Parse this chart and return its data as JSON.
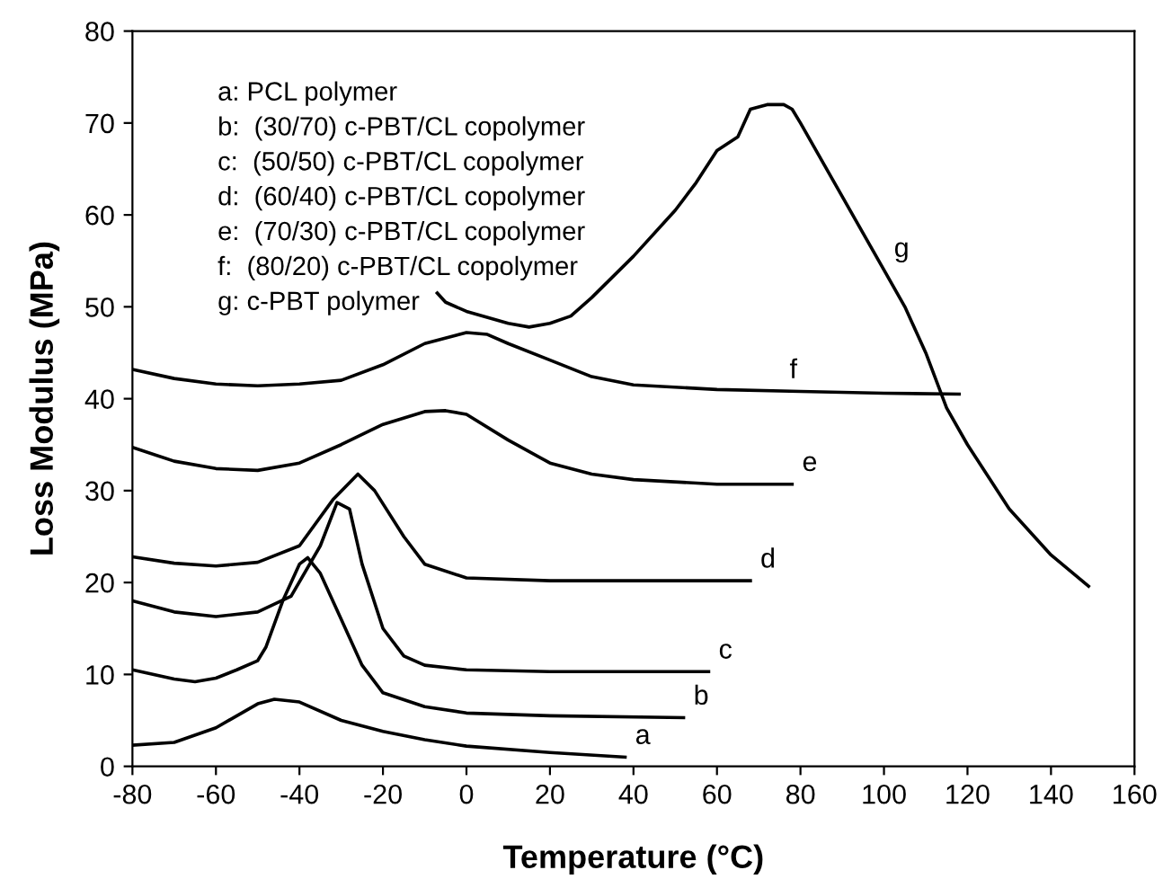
{
  "chart_data": {
    "type": "line",
    "xlabel": "Temperature (°C)",
    "ylabel": "Loss Modulus (MPa)",
    "xlim": [
      -80,
      160
    ],
    "xticks": [
      -80,
      -60,
      -40,
      -20,
      0,
      20,
      40,
      60,
      80,
      100,
      120,
      140,
      160
    ],
    "ylim": [
      0,
      80
    ],
    "yticks": [
      0,
      10,
      20,
      30,
      40,
      50,
      60,
      70,
      80
    ],
    "grid": false,
    "legend": false,
    "marker": "none",
    "line_style": "solid",
    "series": [
      {
        "color": "#000000",
        "x": [
          -80,
          -70,
          -60,
          -50,
          -46,
          -40,
          -30,
          -20,
          -10,
          0,
          20,
          38
        ],
        "values": [
          2.3,
          2.6,
          4.2,
          6.8,
          7.3,
          7.0,
          5.0,
          3.8,
          2.9,
          2.2,
          1.5,
          1.0
        ]
      },
      {
        "color": "#000000",
        "x": [
          -80,
          -70,
          -65,
          -60,
          -55,
          -50,
          -48,
          -44,
          -40,
          -38,
          -35,
          -30,
          -25,
          -20,
          -10,
          0,
          20,
          52
        ],
        "values": [
          10.5,
          9.5,
          9.2,
          9.6,
          10.5,
          11.5,
          13,
          18,
          22,
          22.7,
          21,
          16,
          11,
          8,
          6.5,
          5.8,
          5.5,
          5.3
        ]
      },
      {
        "color": "#000000",
        "x": [
          -80,
          -70,
          -60,
          -50,
          -42,
          -35,
          -31,
          -28,
          -25,
          -20,
          -15,
          -10,
          0,
          20,
          58
        ],
        "values": [
          18,
          16.8,
          16.3,
          16.8,
          18.5,
          24,
          28.7,
          28,
          22,
          15,
          12,
          11,
          10.5,
          10.3,
          10.3
        ]
      },
      {
        "color": "#000000",
        "x": [
          -80,
          -70,
          -60,
          -50,
          -40,
          -32,
          -26,
          -22,
          -15,
          -10,
          0,
          20,
          68
        ],
        "values": [
          22.8,
          22.1,
          21.8,
          22.2,
          24,
          29,
          31.8,
          30,
          25,
          22,
          20.5,
          20.2,
          20.2
        ]
      },
      {
        "color": "#000000",
        "x": [
          -80,
          -70,
          -60,
          -50,
          -40,
          -30,
          -20,
          -10,
          -5,
          0,
          10,
          20,
          30,
          40,
          60,
          78
        ],
        "values": [
          34.7,
          33.2,
          32.4,
          32.2,
          33,
          35,
          37.2,
          38.6,
          38.7,
          38.3,
          35.5,
          33,
          31.8,
          31.2,
          30.7,
          30.7
        ]
      },
      {
        "color": "#000000",
        "x": [
          -80,
          -70,
          -60,
          -50,
          -40,
          -30,
          -20,
          -10,
          0,
          5,
          10,
          20,
          30,
          40,
          60,
          80,
          100,
          118
        ],
        "values": [
          43.2,
          42.2,
          41.6,
          41.4,
          41.6,
          42,
          43.7,
          46,
          47.2,
          47,
          46,
          44.2,
          42.4,
          41.5,
          41,
          40.8,
          40.6,
          40.5
        ]
      },
      {
        "color": "#000000",
        "x": [
          -7,
          -5,
          0,
          10,
          15,
          20,
          25,
          30,
          40,
          50,
          55,
          60,
          65,
          68,
          72,
          76,
          78,
          80,
          90,
          100,
          105,
          110,
          115,
          120,
          130,
          140,
          149
        ],
        "values": [
          51.5,
          50.5,
          49.5,
          48.2,
          47.8,
          48.2,
          49,
          51,
          55.5,
          60.5,
          63.5,
          67,
          68.5,
          71.5,
          72,
          72,
          71.5,
          70,
          62,
          54,
          50,
          45,
          39,
          35,
          28,
          23,
          19.6
        ]
      }
    ],
    "annotations": [
      "a: PCL polymer",
      "b:  (30/70) c-PBT/CL copolymer",
      "c:  (50/50) c-PBT/CL copolymer",
      "d:  (60/40) c-PBT/CL copolymer",
      "e:  (70/30) c-PBT/CL copolymer",
      "f:  (80/20) c-PBT/CL copolymer",
      "g: c-PBT polymer",
      {
        "text": "a",
        "x": 38,
        "y": 1.0
      },
      {
        "text": "b",
        "x": 52,
        "y": 5.3
      },
      {
        "text": "c",
        "x": 58,
        "y": 10.3
      },
      {
        "text": "d",
        "x": 68,
        "y": 20.2
      },
      {
        "text": "e",
        "x": 78,
        "y": 30.7
      },
      {
        "text": "f",
        "x": 75,
        "y": 40.8
      },
      {
        "text": "g",
        "x": 100,
        "y": 54
      }
    ]
  }
}
